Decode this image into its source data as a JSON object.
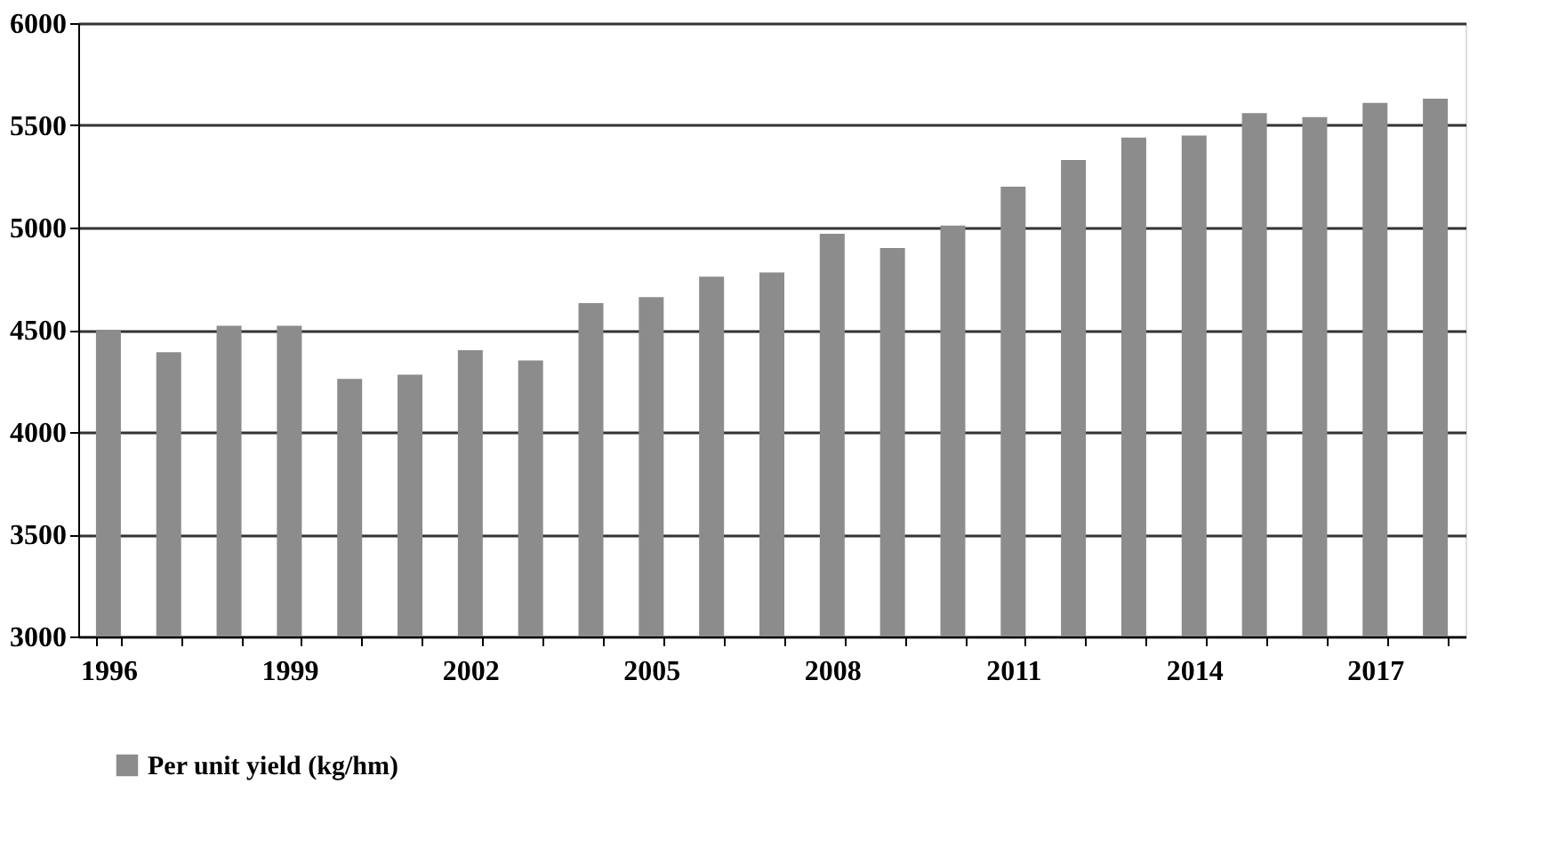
{
  "chart_data": {
    "type": "bar",
    "categories": [
      "1996",
      null,
      null,
      "1999",
      null,
      null,
      "2002",
      null,
      null,
      "2005",
      null,
      null,
      "2008",
      null,
      null,
      "2011",
      null,
      null,
      "2014",
      null,
      null,
      "2017",
      null
    ],
    "series": [
      {
        "name": "Per unit yield (kg/hm)",
        "color": "#8c8c8c",
        "values": [
          4500,
          4390,
          4520,
          4520,
          4260,
          4280,
          4400,
          4350,
          4630,
          4660,
          4760,
          4780,
          4970,
          4900,
          5010,
          5200,
          5330,
          5440,
          5450,
          5560,
          5540,
          5610,
          5630
        ]
      }
    ],
    "ylim": [
      3000,
      6000
    ],
    "yticks": [
      3000,
      3500,
      4000,
      4500,
      5000,
      5500,
      6000
    ],
    "grid": "y",
    "legend": "bottom"
  }
}
